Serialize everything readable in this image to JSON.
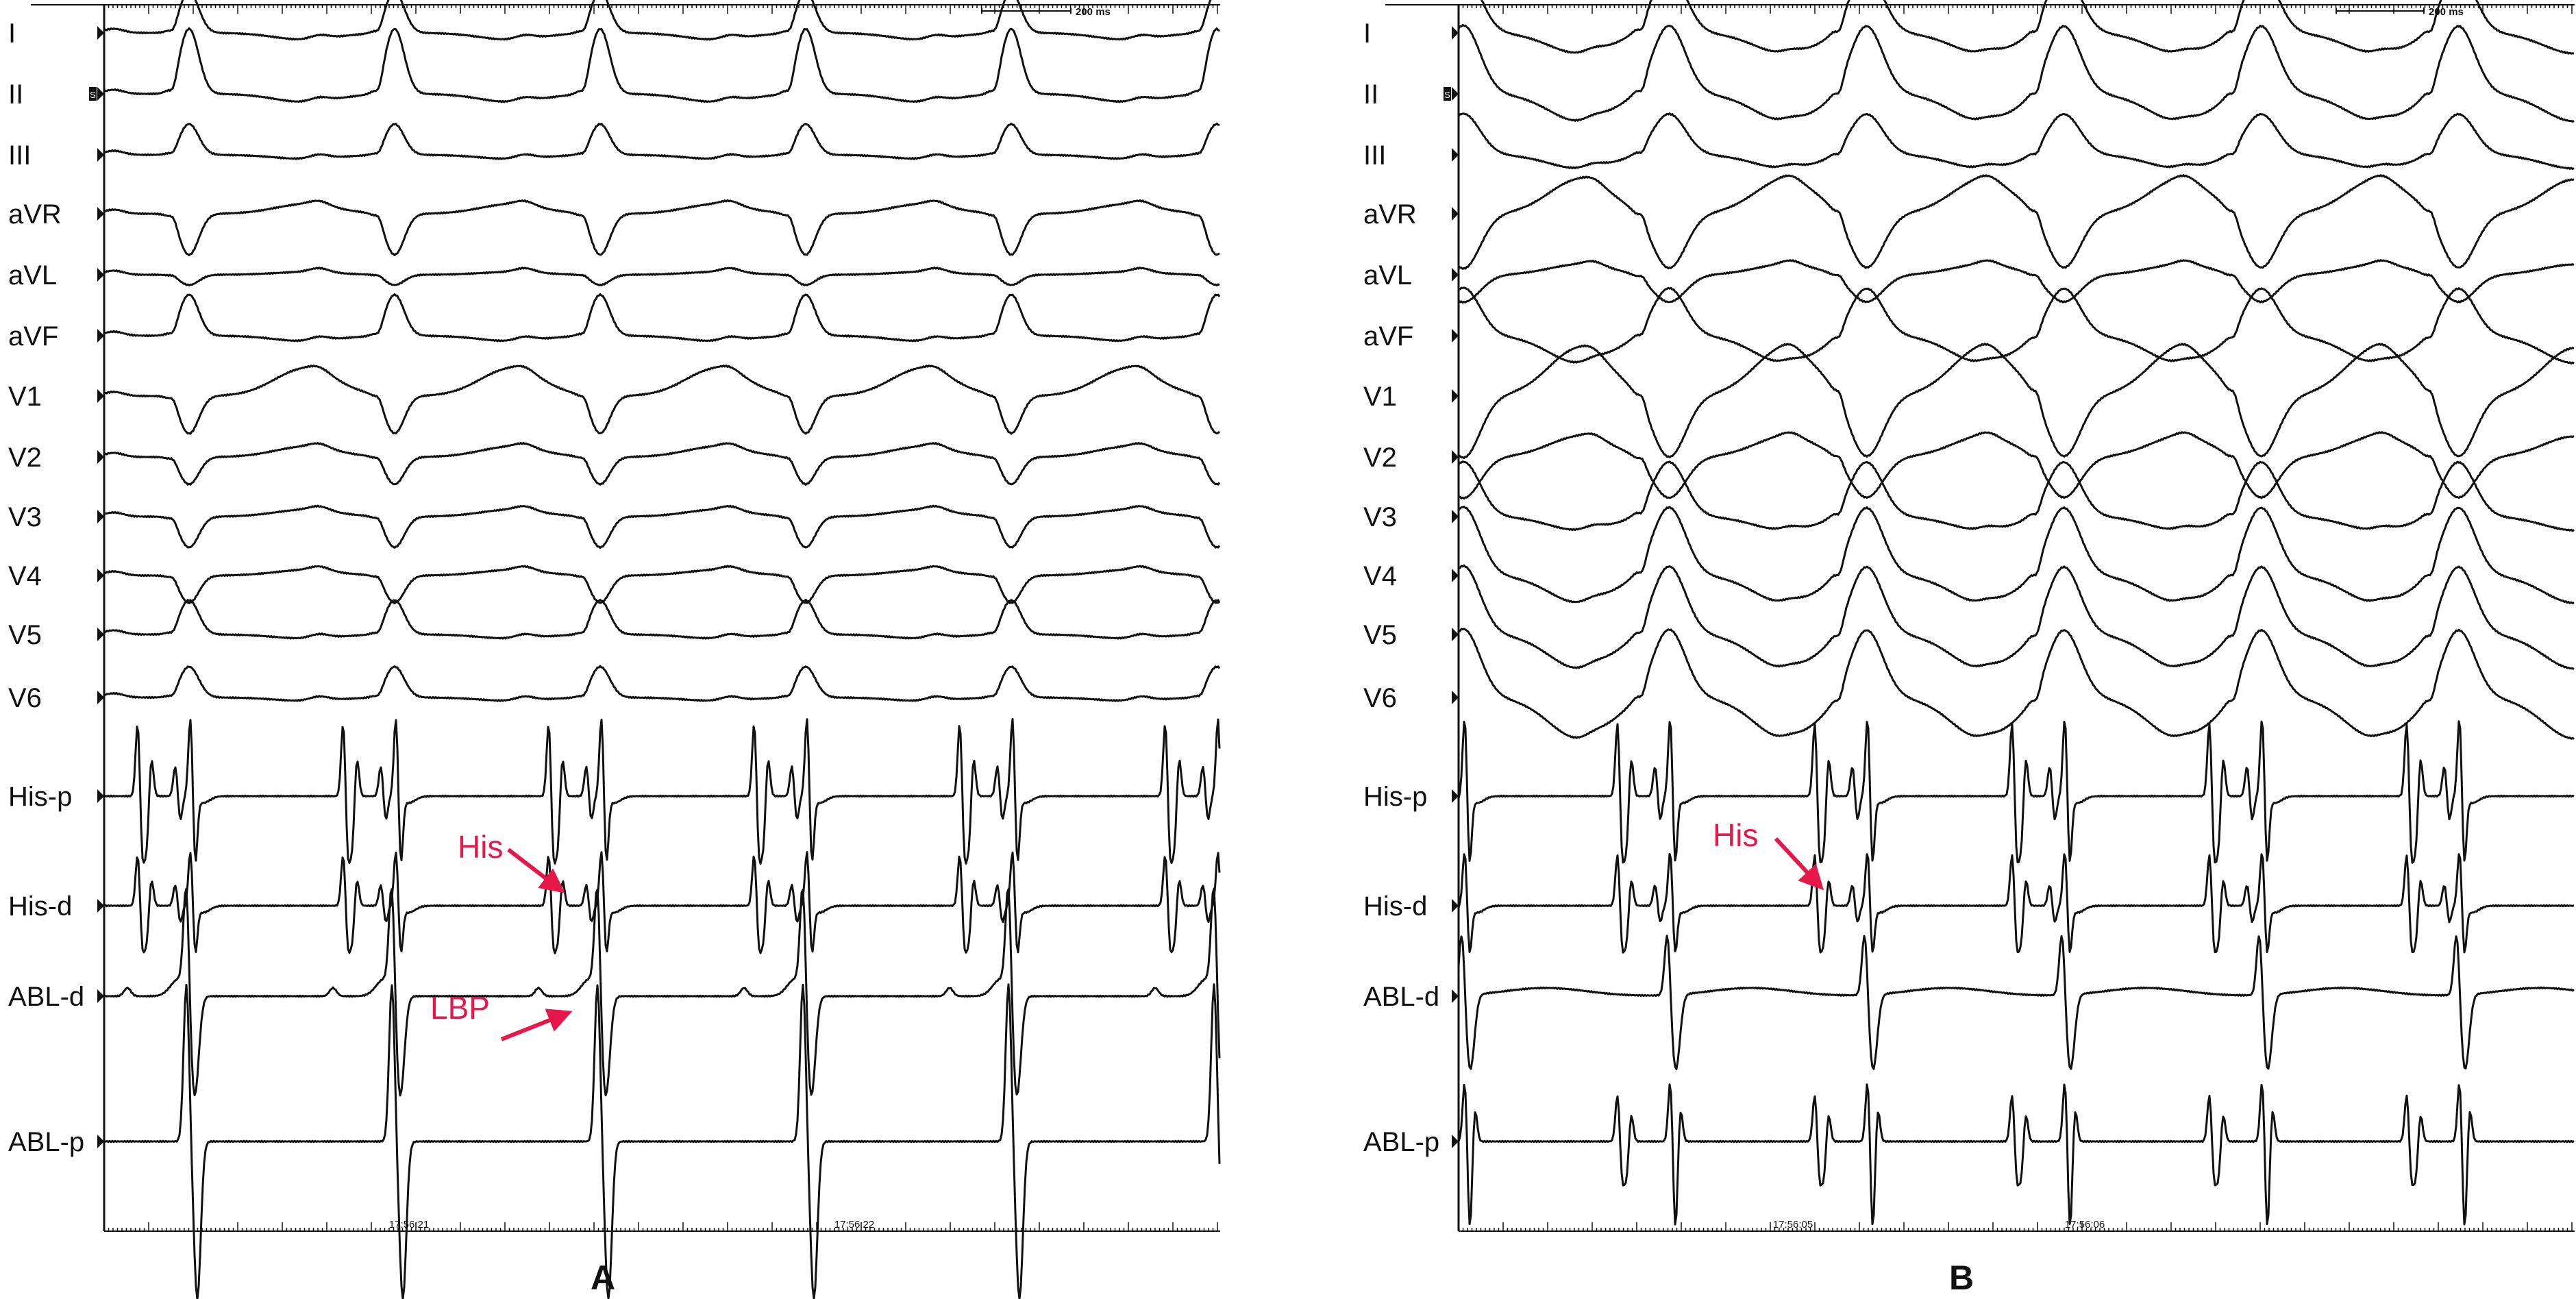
{
  "panels": [
    {
      "label": "A",
      "scale_bar": "200 ms",
      "timestamps": [
        "17:56:21",
        "17:56:22"
      ],
      "leads": [
        "I",
        "II",
        "III",
        "aVR",
        "aVL",
        "aVF",
        "V1",
        "V2",
        "V3",
        "V4",
        "V5",
        "V6",
        "His-p",
        "His-d",
        "ABL-d",
        "ABL-p"
      ],
      "marker": "S",
      "annotations": [
        {
          "text": "His",
          "target": "His-d"
        },
        {
          "text": "LBP",
          "target": "ABL-d"
        }
      ]
    },
    {
      "label": "B",
      "scale_bar": "200 ms",
      "timestamps": [
        "17:56:05",
        "17:56:06"
      ],
      "leads": [
        "I",
        "II",
        "III",
        "aVR",
        "aVL",
        "aVF",
        "V1",
        "V2",
        "V3",
        "V4",
        "V5",
        "V6",
        "His-p",
        "His-d",
        "ABL-d",
        "ABL-p"
      ],
      "marker": "S",
      "annotations": [
        {
          "text": "His",
          "target": "His-d"
        }
      ]
    }
  ],
  "colors": {
    "annotation": "#e8174a",
    "trace": "#111111"
  }
}
